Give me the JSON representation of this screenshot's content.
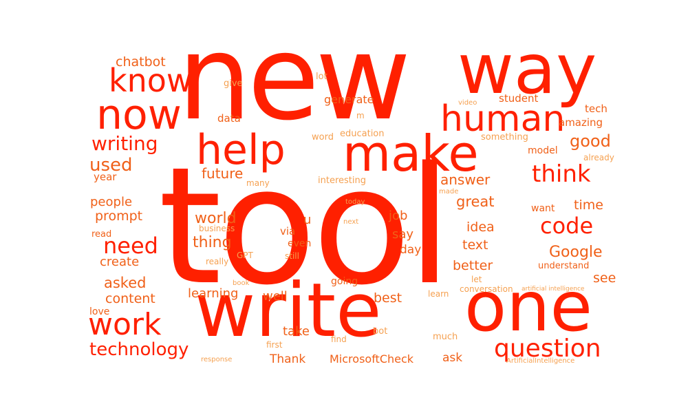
{
  "palette": {
    "primary": "#ff2000",
    "secondary": "#f06018",
    "light": "#f5a050"
  },
  "words": [
    {
      "text": "tool",
      "tone": "primary"
    },
    {
      "text": "new",
      "tone": "primary"
    },
    {
      "text": "write",
      "tone": "primary"
    },
    {
      "text": "one",
      "tone": "primary"
    },
    {
      "text": "way",
      "tone": "primary"
    },
    {
      "text": "make",
      "tone": "primary"
    },
    {
      "text": "help",
      "tone": "primary"
    },
    {
      "text": "now",
      "tone": "primary"
    },
    {
      "text": "human",
      "tone": "primary"
    },
    {
      "text": "know",
      "tone": "primary"
    },
    {
      "text": "work",
      "tone": "primary"
    },
    {
      "text": "question",
      "tone": "primary"
    },
    {
      "text": "think",
      "tone": "primary"
    },
    {
      "text": "code",
      "tone": "primary"
    },
    {
      "text": "need",
      "tone": "primary"
    },
    {
      "text": "writing",
      "tone": "primary"
    },
    {
      "text": "technology",
      "tone": "primary"
    },
    {
      "text": "used",
      "tone": "secondary"
    },
    {
      "text": "good",
      "tone": "secondary"
    },
    {
      "text": "Google",
      "tone": "secondary"
    },
    {
      "text": "world",
      "tone": "secondary"
    },
    {
      "text": "thing",
      "tone": "secondary"
    },
    {
      "text": "future",
      "tone": "secondary"
    },
    {
      "text": "answer",
      "tone": "secondary"
    },
    {
      "text": "great",
      "tone": "secondary"
    },
    {
      "text": "time",
      "tone": "secondary"
    },
    {
      "text": "chatbot",
      "tone": "secondary"
    },
    {
      "text": "idea",
      "tone": "secondary"
    },
    {
      "text": "text",
      "tone": "secondary"
    },
    {
      "text": "better",
      "tone": "secondary"
    },
    {
      "text": "asked",
      "tone": "secondary"
    },
    {
      "text": "see",
      "tone": "secondary"
    },
    {
      "text": "content",
      "tone": "secondary"
    },
    {
      "text": "prompt",
      "tone": "secondary"
    },
    {
      "text": "people",
      "tone": "secondary"
    },
    {
      "text": "create",
      "tone": "secondary"
    },
    {
      "text": "job",
      "tone": "secondary"
    },
    {
      "text": "say",
      "tone": "secondary"
    },
    {
      "text": "best",
      "tone": "secondary"
    },
    {
      "text": "well",
      "tone": "secondary"
    },
    {
      "text": "learning",
      "tone": "secondary"
    },
    {
      "text": "take",
      "tone": "secondary"
    },
    {
      "text": "Thank",
      "tone": "secondary"
    },
    {
      "text": "MicrosoftCheck",
      "tone": "secondary"
    },
    {
      "text": "ask",
      "tone": "secondary"
    },
    {
      "text": "u",
      "tone": "secondary"
    },
    {
      "text": "day",
      "tone": "secondary"
    },
    {
      "text": "generate",
      "tone": "secondary"
    },
    {
      "text": "student",
      "tone": "secondary"
    },
    {
      "text": "tech",
      "tone": "secondary"
    },
    {
      "text": "amazing",
      "tone": "secondary"
    },
    {
      "text": "data",
      "tone": "secondary"
    },
    {
      "text": "year",
      "tone": "secondary"
    },
    {
      "text": "via",
      "tone": "secondary"
    },
    {
      "text": "even",
      "tone": "secondary"
    },
    {
      "text": "going",
      "tone": "secondary"
    },
    {
      "text": "love",
      "tone": "secondary"
    },
    {
      "text": "model",
      "tone": "secondary"
    },
    {
      "text": "want",
      "tone": "secondary"
    },
    {
      "text": "understand",
      "tone": "secondary"
    },
    {
      "text": "read",
      "tone": "secondary"
    },
    {
      "text": "lot",
      "tone": "light"
    },
    {
      "text": "give",
      "tone": "light"
    },
    {
      "text": "m",
      "tone": "light"
    },
    {
      "text": "video",
      "tone": "light"
    },
    {
      "text": "education",
      "tone": "light"
    },
    {
      "text": "word",
      "tone": "light"
    },
    {
      "text": "something",
      "tone": "light"
    },
    {
      "text": "already",
      "tone": "light"
    },
    {
      "text": "interesting",
      "tone": "light"
    },
    {
      "text": "many",
      "tone": "light"
    },
    {
      "text": "made",
      "tone": "light"
    },
    {
      "text": "today",
      "tone": "light"
    },
    {
      "text": "next",
      "tone": "light"
    },
    {
      "text": "business",
      "tone": "light"
    },
    {
      "text": "GPT",
      "tone": "light"
    },
    {
      "text": "really",
      "tone": "light"
    },
    {
      "text": "still",
      "tone": "light"
    },
    {
      "text": "book",
      "tone": "light"
    },
    {
      "text": "let",
      "tone": "light"
    },
    {
      "text": "learn",
      "tone": "light"
    },
    {
      "text": "conversation",
      "tone": "light"
    },
    {
      "text": "artificial intelligence",
      "tone": "light"
    },
    {
      "text": "first",
      "tone": "light"
    },
    {
      "text": "find",
      "tone": "light"
    },
    {
      "text": "bot",
      "tone": "light"
    },
    {
      "text": "much",
      "tone": "light"
    },
    {
      "text": "response",
      "tone": "light"
    },
    {
      "text": "ArtificialIntelligence",
      "tone": "light"
    }
  ]
}
